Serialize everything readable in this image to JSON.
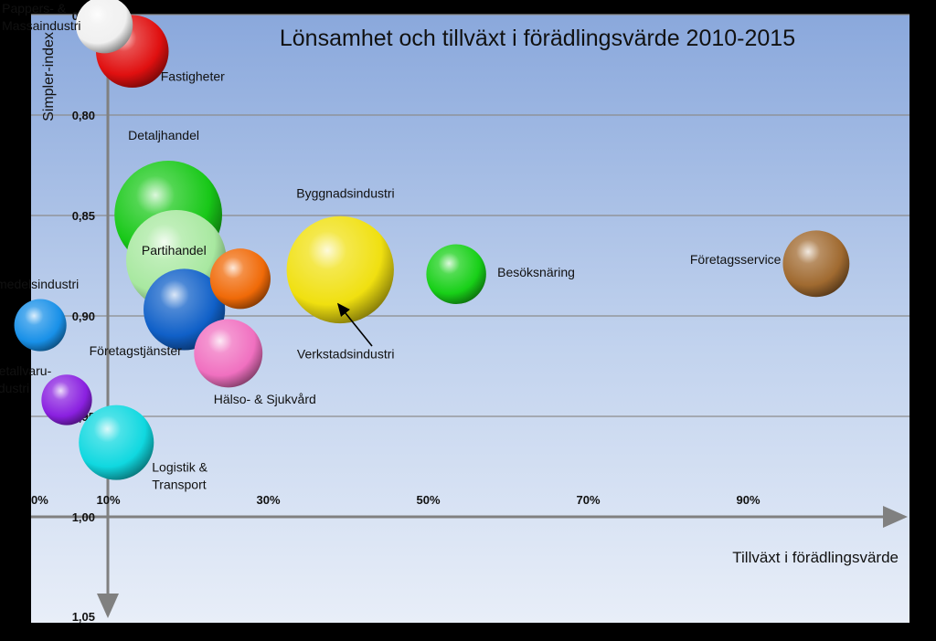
{
  "chart_data": {
    "type": "scatter",
    "subtype": "bubble",
    "title": "Lönsamhet och tillväxt i förädlingsvärde 2010-2015",
    "xlabel": "Tillväxt i förädlingsvärde",
    "ylabel": "Simpler-index",
    "y_inverted": true,
    "grid": {
      "horizontal": true,
      "vertical": false
    },
    "legend": "none",
    "x_ticks": [
      {
        "value": 0,
        "label": "0%"
      },
      {
        "value": 10,
        "label": "10%"
      },
      {
        "value": 30,
        "label": "30%"
      },
      {
        "value": 50,
        "label": "50%"
      },
      {
        "value": 70,
        "label": "70%"
      },
      {
        "value": 90,
        "label": "90%"
      }
    ],
    "y_ticks": [
      {
        "value": 0.75,
        "label": "0,75"
      },
      {
        "value": 0.8,
        "label": "0,80"
      },
      {
        "value": 0.85,
        "label": "0,85"
      },
      {
        "value": 0.9,
        "label": "0,90"
      },
      {
        "value": 0.95,
        "label": "0,95"
      },
      {
        "value": 1.0,
        "label": "1,00"
      },
      {
        "value": 1.05,
        "label": "1,05"
      }
    ],
    "points": [
      {
        "name": "Pappers- & Massaindustri",
        "label_lines": [
          "Pappers- &",
          "Massaindustri"
        ],
        "x": 9.5,
        "y": 0.7551,
        "size": 38,
        "color": "#f0f0f0"
      },
      {
        "name": "Fastigheter",
        "label_lines": [
          "Fastigheter"
        ],
        "x": 13.0,
        "y": 0.7683,
        "size": 62,
        "color": "#e01010"
      },
      {
        "name": "Detaljhandel",
        "label_lines": [
          "Detaljhandel"
        ],
        "x": 17.5,
        "y": 0.8495,
        "size": 136,
        "color": "#18c818"
      },
      {
        "name": "Partihandel",
        "label_lines": [
          "Partihandel"
        ],
        "x": 18.5,
        "y": 0.8722,
        "size": 118,
        "color": "#a8e8a0"
      },
      {
        "name": "Företagstjänster",
        "label_lines": [
          "Företagstjänster"
        ],
        "x": 19.5,
        "y": 0.8968,
        "size": 78,
        "color": "#1060c8"
      },
      {
        "name": "Verkstadsindustri",
        "label_lines": [
          "Verkstadsindustri"
        ],
        "x": 26.5,
        "y": 0.8815,
        "size": 43,
        "color": "#f06a08"
      },
      {
        "name": "Byggnadsindustri",
        "label_lines": [
          "Byggnadsindustri"
        ],
        "x": 39.0,
        "y": 0.877,
        "size": 135,
        "color": "#f0e010"
      },
      {
        "name": "Besöksnäring",
        "label_lines": [
          "Besöksnäring"
        ],
        "x": 53.5,
        "y": 0.8792,
        "size": 42,
        "color": "#18d018"
      },
      {
        "name": "Företagsservice",
        "label_lines": [
          "Företagsservice"
        ],
        "x": 98.5,
        "y": 0.874,
        "size": 52,
        "color": "#a06a30"
      },
      {
        "name": "Livsmedelsindustri",
        "label_lines": [
          "Livsmedelsindustri"
        ],
        "x": 1.5,
        "y": 0.9046,
        "size": 32,
        "color": "#1890e8"
      },
      {
        "name": "Hälso- & Sjukvård",
        "label_lines": [
          "Hälso- & Sjukvård"
        ],
        "x": 25.0,
        "y": 0.9186,
        "size": 55,
        "color": "#f070c0"
      },
      {
        "name": "Metallvaruindustri",
        "label_lines": [
          "Metallvaru-",
          "industri"
        ],
        "x": 4.8,
        "y": 0.9418,
        "size": 30,
        "color": "#8a20e0"
      },
      {
        "name": "Logistik & Transport",
        "label_lines": [
          "Logistik &",
          "Transport"
        ],
        "x": 11.0,
        "y": 0.963,
        "size": 66,
        "color": "#10d8e0"
      }
    ]
  }
}
